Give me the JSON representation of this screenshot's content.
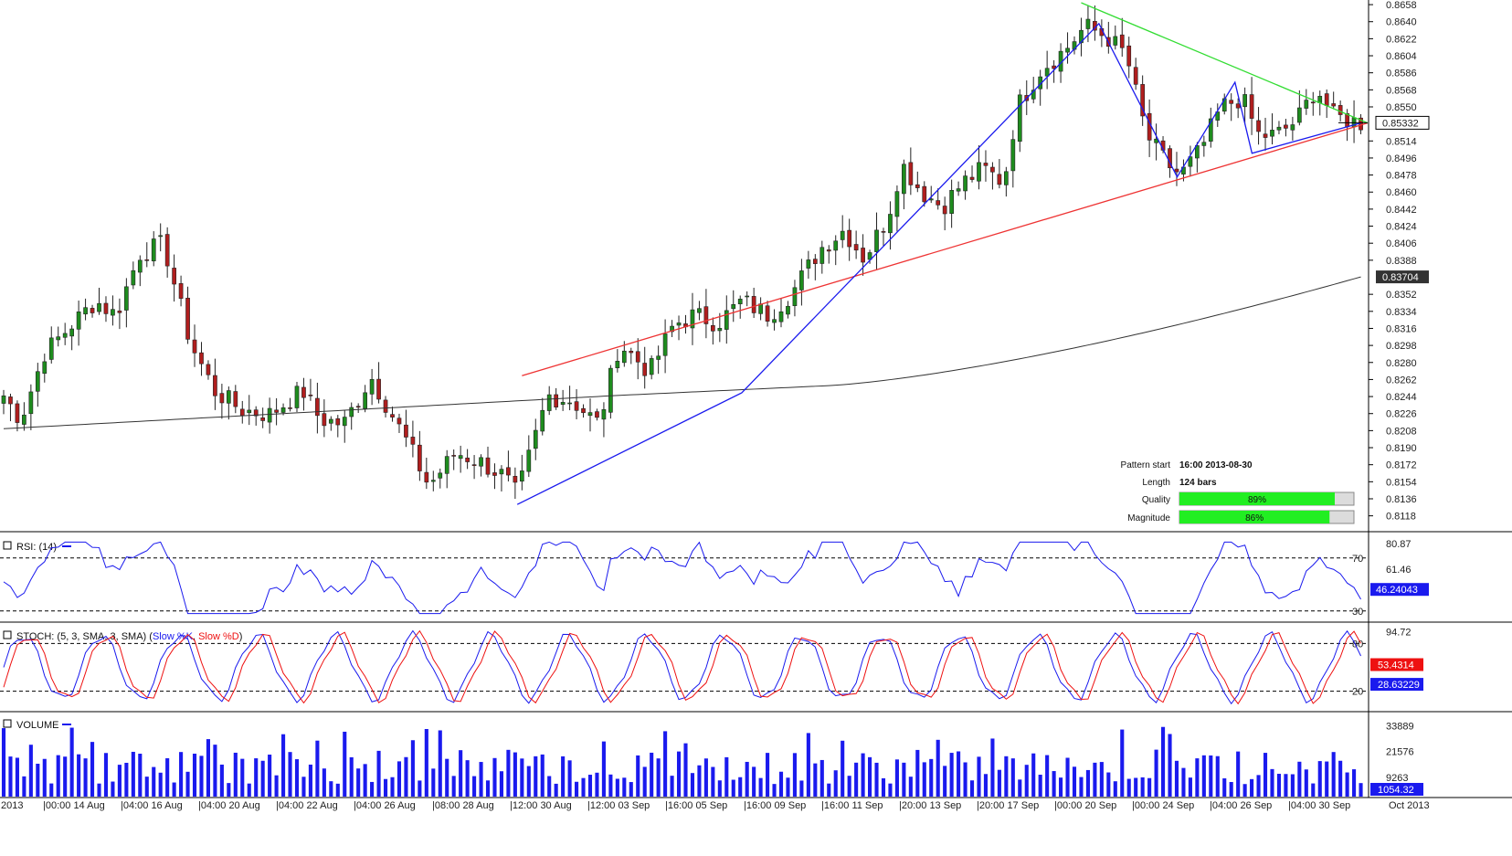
{
  "price": {
    "axis_ticks": [
      "0.8658",
      "0.8640",
      "0.8622",
      "0.8604",
      "0.8586",
      "0.8568",
      "0.8550",
      "0.8514",
      "0.8496",
      "0.8478",
      "0.8460",
      "0.8442",
      "0.8424",
      "0.8406",
      "0.8388",
      "0.8352",
      "0.8334",
      "0.8316",
      "0.8298",
      "0.8280",
      "0.8262",
      "0.8244",
      "0.8226",
      "0.8208",
      "0.8190",
      "0.8172",
      "0.8154",
      "0.8136",
      "0.8118"
    ],
    "current_price_label": "0.85332",
    "ma_price_label": "0.83704"
  },
  "pattern_info": {
    "start_label": "Pattern start",
    "start_value": "16:00 2013-08-30",
    "length_label": "Length",
    "length_value": "124 bars",
    "quality_label": "Quality",
    "quality_value": "89%",
    "quality_fraction": 0.89,
    "magnitude_label": "Magnitude",
    "magnitude_value": "86%",
    "magnitude_fraction": 0.86
  },
  "rsi": {
    "title": "RSI: (14)",
    "axis_ticks": [
      "80.87",
      "61.46"
    ],
    "level_high": "70",
    "level_low": "30",
    "value_label": "46.24043"
  },
  "stoch": {
    "title_prefix": "STOCH: (5, 3, SMA, 3, SMA) (",
    "k_label": "Slow %K",
    "sep": ", ",
    "d_label": "Slow %D",
    "title_suffix": ")",
    "axis_ticks": [
      "94.72"
    ],
    "level_high": "80",
    "level_low": "20",
    "k_value_label": "53.4314",
    "d_value_label": "28.63229"
  },
  "volume": {
    "title": "VOLUME",
    "axis_ticks": [
      "33889",
      "21576",
      "9263"
    ],
    "value_label": "1054.32"
  },
  "time_axis": [
    "2013",
    "|00:00 14 Aug",
    "|04:00 16 Aug",
    "|04:00 20 Aug",
    "|04:00 22 Aug",
    "|04:00 26 Aug",
    "|08:00 28 Aug",
    "|12:00 30 Aug",
    "|12:00 03 Sep",
    "|16:00 05 Sep",
    "|16:00 09 Sep",
    "|16:00 11 Sep",
    "|20:00 13 Sep",
    "|20:00 17 Sep",
    "|00:00 20 Sep",
    "|00:00 24 Sep",
    "|04:00 26 Sep",
    "|04:00 30 Sep",
    "Oct 2013"
  ],
  "colors": {
    "bull": "#1e8c1e",
    "bear": "#b01e1e",
    "resistance": "#33dd33",
    "support": "#ee3333",
    "zigzag": "#1a1aee",
    "ma": "#333333",
    "rsi": "#1a1aee",
    "stoch_k": "#1a1aee",
    "stoch_d": "#ee1111",
    "volume": "#1a1aee",
    "bar_fill": "#22ee22"
  },
  "chart_data": {
    "type": "candlestick",
    "instrument_scale": {
      "price_min": 0.8108,
      "price_max": 0.866
    },
    "support_line": {
      "from": {
        "bar_index": 76,
        "price": 0.8266
      },
      "to": {
        "bar_index": 199,
        "price": 0.8533
      }
    },
    "resistance_line": {
      "from": {
        "bar_index": 158,
        "price": 0.866
      },
      "to": {
        "bar_index": 199,
        "price": 0.8533
      }
    },
    "moving_average_last": 0.83704,
    "last_close": 0.85332,
    "rsi_levels": [
      70,
      30
    ],
    "stoch_levels": [
      80,
      20
    ]
  }
}
